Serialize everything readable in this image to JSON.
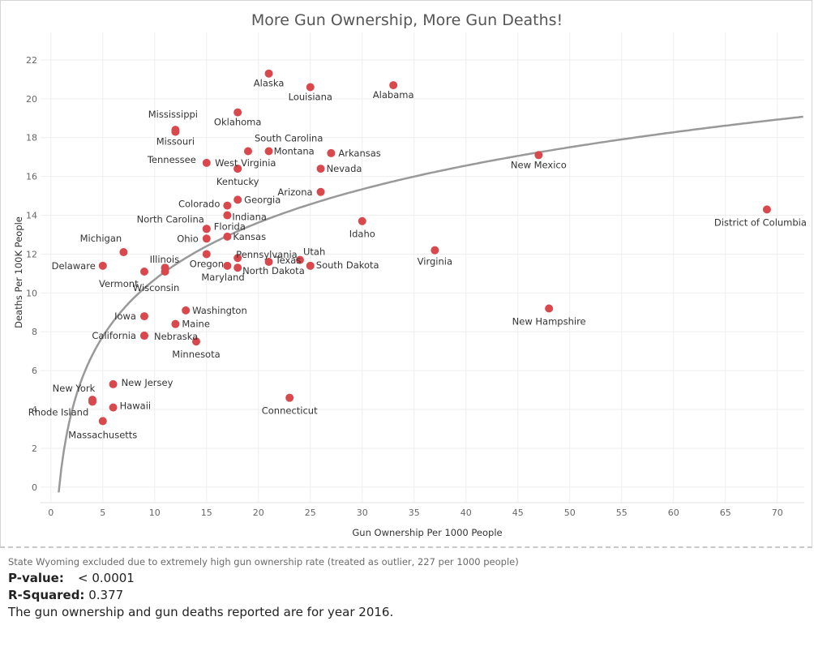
{
  "chart_data": {
    "type": "scatter",
    "title": "More Gun Ownership, More Gun Deaths!",
    "xlabel": "Gun Ownership Per 1000 People",
    "ylabel": "Deaths Per 100K People",
    "xlim": [
      -1,
      72.6
    ],
    "ylim": [
      -0.8,
      23
    ],
    "xticks": [
      0,
      5,
      10,
      15,
      20,
      25,
      30,
      35,
      40,
      45,
      50,
      55,
      60,
      65,
      70
    ],
    "yticks": [
      0,
      2,
      4,
      6,
      8,
      10,
      12,
      14,
      16,
      18,
      20,
      22
    ],
    "grid": true,
    "point_color": "#d9484d",
    "trend_color": "#999999",
    "trend_line": "logarithmic",
    "points": [
      {
        "label": "Alaska",
        "x": 21,
        "y": 21.3
      },
      {
        "label": "Louisiana",
        "x": 25,
        "y": 20.6
      },
      {
        "label": "Alabama",
        "x": 33,
        "y": 20.7
      },
      {
        "label": "Oklahoma",
        "x": 18,
        "y": 19.3
      },
      {
        "label": "Mississippi",
        "x": 12,
        "y": 18.4
      },
      {
        "label": "Missouri",
        "x": 12,
        "y": 18.3
      },
      {
        "label": "South Carolina",
        "x": 19,
        "y": 17.3
      },
      {
        "label": "Montana",
        "x": 21,
        "y": 17.3
      },
      {
        "label": "Arkansas",
        "x": 27,
        "y": 17.2
      },
      {
        "label": "New Mexico",
        "x": 47,
        "y": 17.1
      },
      {
        "label": "Tennessee",
        "x": 15,
        "y": 16.7
      },
      {
        "label": "West Virginia",
        "x": 18,
        "y": 16.4
      },
      {
        "label": "Nevada",
        "x": 26,
        "y": 16.4
      },
      {
        "label": "Kentucky",
        "x": 18,
        "y": 16.4
      },
      {
        "label": "Arizona",
        "x": 26,
        "y": 15.2
      },
      {
        "label": "Georgia",
        "x": 18,
        "y": 14.8
      },
      {
        "label": "Colorado",
        "x": 17,
        "y": 14.5
      },
      {
        "label": "Indiana",
        "x": 17,
        "y": 14.0
      },
      {
        "label": "District of Columbia",
        "x": 69,
        "y": 14.3
      },
      {
        "label": "Idaho",
        "x": 30,
        "y": 13.7
      },
      {
        "label": "North Carolina",
        "x": 15,
        "y": 13.3
      },
      {
        "label": "Florida",
        "x": 15,
        "y": 13.3
      },
      {
        "label": "Ohio",
        "x": 15,
        "y": 12.8
      },
      {
        "label": "Kansas",
        "x": 17,
        "y": 12.9
      },
      {
        "label": "Michigan",
        "x": 7,
        "y": 12.1
      },
      {
        "label": "Virginia",
        "x": 37,
        "y": 12.2
      },
      {
        "label": "Oregon",
        "x": 15,
        "y": 12.0
      },
      {
        "label": "Pennsylvania",
        "x": 18,
        "y": 11.8
      },
      {
        "label": "Utah",
        "x": 24,
        "y": 11.7
      },
      {
        "label": "Texas",
        "x": 21,
        "y": 11.6
      },
      {
        "label": "Illinois",
        "x": 11,
        "y": 11.3
      },
      {
        "label": "Delaware",
        "x": 5,
        "y": 11.4
      },
      {
        "label": "Maryland",
        "x": 17,
        "y": 11.4
      },
      {
        "label": "North Dakota",
        "x": 18,
        "y": 11.3
      },
      {
        "label": "South Dakota",
        "x": 25,
        "y": 11.4
      },
      {
        "label": "Vermont",
        "x": 9,
        "y": 11.1
      },
      {
        "label": "Wisconsin",
        "x": 11,
        "y": 11.1
      },
      {
        "label": "Washington",
        "x": 13,
        "y": 9.1
      },
      {
        "label": "New Hampshire",
        "x": 48,
        "y": 9.2
      },
      {
        "label": "Iowa",
        "x": 9,
        "y": 8.8
      },
      {
        "label": "Maine",
        "x": 12,
        "y": 8.4
      },
      {
        "label": "California",
        "x": 9,
        "y": 7.8
      },
      {
        "label": "Nebraska",
        "x": 9,
        "y": 7.8
      },
      {
        "label": "Minnesota",
        "x": 14,
        "y": 7.5
      },
      {
        "label": "New Jersey",
        "x": 6,
        "y": 5.3
      },
      {
        "label": "New York",
        "x": 4,
        "y": 4.5
      },
      {
        "label": "Connecticut",
        "x": 23,
        "y": 4.6
      },
      {
        "label": "Rhode Island",
        "x": 4,
        "y": 4.4
      },
      {
        "label": "Hawaii",
        "x": 6,
        "y": 4.1
      },
      {
        "label": "Massachusetts",
        "x": 5,
        "y": 3.4
      }
    ]
  },
  "footer": {
    "note": "State Wyoming excluded due to extremely high gun ownership rate (treated as outlier, 227 per 1000 people)",
    "pvalue_label": "P-value:",
    "pvalue_value": "< 0.0001",
    "rsq_label": "R-Squared:",
    "rsq_value": "0.377",
    "year_note": "The gun ownership and gun deaths reported are for year 2016."
  }
}
